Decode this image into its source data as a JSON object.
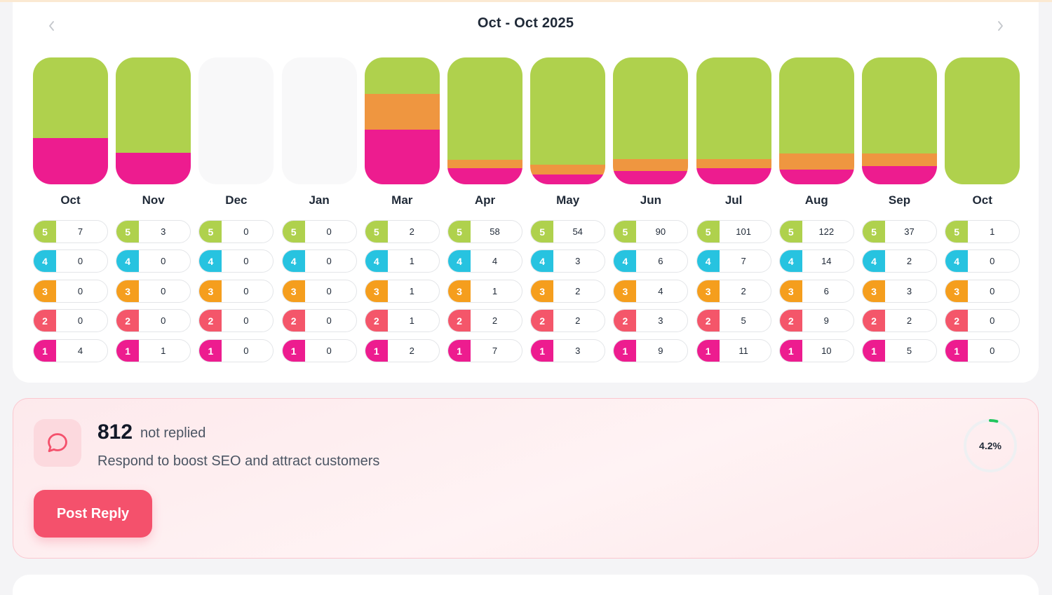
{
  "header": {
    "range_title": "Oct - Oct 2025"
  },
  "colors": {
    "star5": "#afd14d",
    "star4": "#27c3e0",
    "star3": "#f59e1d",
    "star2": "#f4566a",
    "star1": "#ed1c8f",
    "bar_orange": "#ef9640",
    "empty": "#f8f8f9",
    "accent": "#f4516c",
    "progress": "#22c55e"
  },
  "chart_data": {
    "type": "bar",
    "stacked": true,
    "normalized": true,
    "categories": [
      "Oct",
      "Nov",
      "Dec",
      "Jan",
      "Mar",
      "Apr",
      "May",
      "Jun",
      "Jul",
      "Aug",
      "Sep",
      "Oct"
    ],
    "series": [
      {
        "star": 5,
        "values": [
          7,
          3,
          0,
          0,
          2,
          58,
          54,
          90,
          101,
          122,
          37,
          1
        ]
      },
      {
        "star": 4,
        "values": [
          0,
          0,
          0,
          0,
          1,
          4,
          3,
          6,
          7,
          14,
          2,
          0
        ]
      },
      {
        "star": 3,
        "values": [
          0,
          0,
          0,
          0,
          1,
          1,
          2,
          4,
          2,
          6,
          3,
          0
        ]
      },
      {
        "star": 2,
        "values": [
          0,
          0,
          0,
          0,
          1,
          2,
          2,
          3,
          5,
          9,
          2,
          0
        ]
      },
      {
        "star": 1,
        "values": [
          4,
          1,
          0,
          0,
          2,
          7,
          3,
          9,
          11,
          10,
          5,
          0
        ]
      }
    ]
  },
  "alert": {
    "count": "812",
    "count_label": "not replied",
    "hint": "Respond to boost SEO and attract customers",
    "button_label": "Post Reply",
    "percent_label": "4.2%",
    "percent_value": 4.2,
    "icon": "chat-bubble-icon"
  }
}
